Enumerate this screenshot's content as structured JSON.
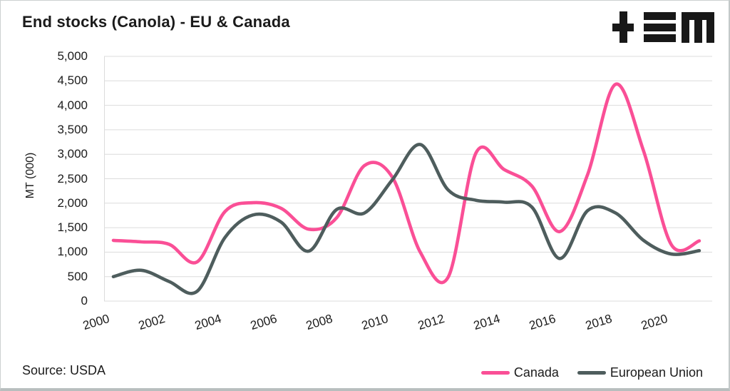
{
  "header": {
    "title": "End stocks (Canola) - EU & Canada"
  },
  "footer": {
    "source": "Source: USDA"
  },
  "logo": {
    "icons": [
      "plus-icon",
      "triple-bar-icon",
      "m-icon"
    ],
    "color": "#181818"
  },
  "styles": {
    "grid_color": "#dcdcdc",
    "axis_line_color": "#dcdcdc",
    "text_color": "#1b1b1b",
    "canada_color": "#fa4f96",
    "eu_color": "#4e5d5d"
  },
  "chart_data": {
    "type": "line",
    "title": "End stocks (Canola) - EU & Canada",
    "xlabel": "",
    "ylabel": "MT (000)",
    "ylim": [
      0,
      5000
    ],
    "ytick_step": 500,
    "yticks": [
      "5,000",
      "4,500",
      "4,000",
      "3,500",
      "3,000",
      "2,500",
      "2,000",
      "1,500",
      "1,000",
      "500",
      "0"
    ],
    "x": [
      2000,
      2001,
      2002,
      2003,
      2004,
      2005,
      2006,
      2007,
      2008,
      2009,
      2010,
      2011,
      2012,
      2013,
      2014,
      2015,
      2016,
      2017,
      2018,
      2019,
      2020,
      2021
    ],
    "xticks": [
      "2000",
      "2002",
      "2004",
      "2006",
      "2008",
      "2010",
      "2012",
      "2014",
      "2016",
      "2018",
      "2020"
    ],
    "grid": true,
    "legend_position": "bottom-right",
    "series": [
      {
        "name": "Canada",
        "color": "#fa4f96",
        "values": [
          1240,
          1210,
          1160,
          800,
          1830,
          2010,
          1900,
          1470,
          1700,
          2770,
          2530,
          1000,
          490,
          3030,
          2690,
          2350,
          1420,
          2590,
          4430,
          3070,
          1150,
          1230
        ]
      },
      {
        "name": "European Union",
        "color": "#4e5d5d",
        "values": [
          500,
          630,
          400,
          200,
          1300,
          1760,
          1620,
          1020,
          1870,
          1800,
          2480,
          3200,
          2270,
          2060,
          2020,
          1920,
          870,
          1850,
          1800,
          1240,
          960,
          1030
        ]
      }
    ]
  }
}
